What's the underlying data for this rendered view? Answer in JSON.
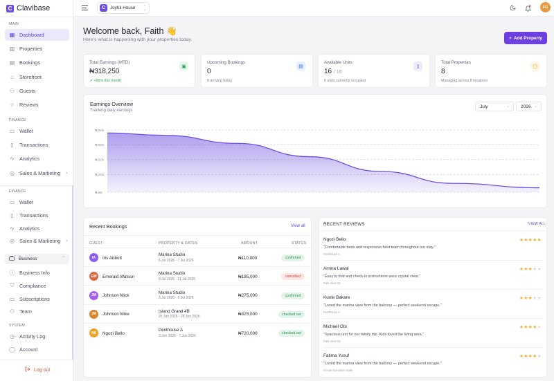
{
  "brand": {
    "name": "Clavibase",
    "logo_letter": "C"
  },
  "sidebar": {
    "main_label": "MAIN",
    "main_items": [
      {
        "label": "Dashboard",
        "icon": "grid-icon",
        "active": true
      },
      {
        "label": "Properties",
        "icon": "building-icon"
      },
      {
        "label": "Bookings",
        "icon": "calendar-icon"
      },
      {
        "label": "Storefront",
        "icon": "store-icon"
      },
      {
        "label": "Guests",
        "icon": "users-icon"
      },
      {
        "label": "Reviews",
        "icon": "star-icon"
      }
    ],
    "finance_label": "FINANCE",
    "finance_items": [
      {
        "label": "Wallet",
        "icon": "wallet-icon"
      },
      {
        "label": "Transactions",
        "icon": "receipt-icon"
      },
      {
        "label": "Analytics",
        "icon": "chart-line-icon"
      },
      {
        "label": "Sales & Marketing",
        "icon": "megaphone-icon"
      }
    ],
    "finance2_label": "FINANCE",
    "finance2_items": [
      {
        "label": "Wallet",
        "icon": "wallet-icon"
      },
      {
        "label": "Transactions",
        "icon": "receipt-icon"
      },
      {
        "label": "Analytics",
        "icon": "chart-line-icon"
      },
      {
        "label": "Sales & Marketing",
        "icon": "megaphone-icon"
      }
    ],
    "business_group": "Business",
    "business_items": [
      {
        "label": "Business Info",
        "icon": "info-icon"
      },
      {
        "label": "Compliance",
        "icon": "shield-icon"
      },
      {
        "label": "Subscriptions",
        "icon": "card-icon"
      },
      {
        "label": "Team",
        "icon": "team-icon"
      }
    ],
    "system_label": "SYSTEM",
    "system_items": [
      {
        "label": "Activity Log",
        "icon": "clock-icon"
      },
      {
        "label": "Account",
        "icon": "user-icon"
      }
    ],
    "logout": "Log out"
  },
  "topbar": {
    "property_badge": "C",
    "property_name": "Joyful House",
    "avatar_initials": "FO"
  },
  "header": {
    "welcome": "Welcome back, Faith 👋",
    "subtitle": "Here's what is happening with your properties today.",
    "add_button": "Add Property"
  },
  "stats": [
    {
      "title": "Total Earnings (MTD)",
      "value": "₦318,250",
      "suffix": "",
      "note": "+56% this month",
      "note_color": "#2f9e5a",
      "icon": "money-icon",
      "icon_bg": "#e6f6ec",
      "icon_color": "#2f9e5a"
    },
    {
      "title": "Upcoming Bookings",
      "value": "0",
      "suffix": "",
      "note": "0 arriving today",
      "icon": "calendar-icon",
      "icon_bg": "#e7eefc",
      "icon_color": "#3f6fd8"
    },
    {
      "title": "Available Units",
      "value": "16",
      "suffix": "/ 16",
      "note": "0 units currently occupied",
      "icon": "door-icon",
      "icon_bg": "#efeafc",
      "icon_color": "#6d4ee0"
    },
    {
      "title": "Total Properties",
      "value": "8",
      "suffix": "",
      "note": "Managing across 8 locations",
      "icon": "folder-icon",
      "icon_bg": "#fdf4e2",
      "icon_color": "#d99a1e"
    }
  ],
  "chart": {
    "title": "Earnings Overview",
    "subtitle": "Tracking daily earnings",
    "month_select": "July",
    "year_select": "2026"
  },
  "chart_data": {
    "type": "area",
    "y_ticks": [
      "₦40k",
      "₦100k",
      "₦150k",
      "₦200k",
      "₦250k"
    ],
    "y_tick_values": [
      40000,
      100000,
      150000,
      200000,
      250000
    ],
    "ylim": [
      40000,
      250000
    ],
    "x": [
      1,
      5,
      10,
      15,
      20,
      25,
      31
    ],
    "values": [
      240000,
      232000,
      205000,
      160000,
      110000,
      70000,
      55000
    ],
    "grid": true,
    "color": "#6d4ee0"
  },
  "bookings": {
    "title": "Recent Bookings",
    "view_all": "View all",
    "headers": [
      "GUEST",
      "PROPERTY & DATES",
      "AMOUNT",
      "STATUS"
    ],
    "rows": [
      {
        "initials": "IA",
        "avatar_color": "#8a5cf0",
        "guest": "Iris Abbott",
        "property": "Marina Studio",
        "dates": "6 Jul 2026 - 7 Jul 2026",
        "amount": "₦110,000",
        "status": "confirmed",
        "status_type": "confirmed"
      },
      {
        "initials": "EW",
        "avatar_color": "#e0683e",
        "guest": "Emerald Watson",
        "property": "Marina Studio",
        "dates": "9 Jul 2026 - 11 Jul 2026",
        "amount": "₦195,000",
        "status": "cancelled",
        "status_type": "cancelled"
      },
      {
        "initials": "JM",
        "avatar_color": "#a25de8",
        "guest": "Johnson Mick",
        "property": "Marina Studio",
        "dates": "3 Jul 2026 - 6 Jul 2026",
        "amount": "₦275,000",
        "status": "confirmed",
        "status_type": "confirmed"
      },
      {
        "initials": "JM",
        "avatar_color": "#d9862a",
        "guest": "Johnson Mike",
        "property": "Island Grand 4B",
        "dates": "25 Jun 2026 - 28 Jun 2026",
        "amount": "₦325,000",
        "status": "checked out",
        "status_type": "checked"
      },
      {
        "initials": "NB",
        "avatar_color": "#f0a020",
        "guest": "Ngozi Bello",
        "property": "Penthouse A",
        "dates": "3 Jun 2026 - 7 Jun 2026",
        "amount": "₦720,000",
        "status": "checked out",
        "status_type": "checked"
      }
    ]
  },
  "reviews": {
    "title": "RECENT REVIEWS",
    "view_all": "VIEW ALL",
    "items": [
      {
        "name": "Ngozi Bello",
        "text": "\"Comfortable beds and responsive host team throughout our stay.\"",
        "property": "Penthouse A",
        "rating": 5
      },
      {
        "name": "Amina Lawal",
        "text": "\"Easy to find and check-in instructions were crystal clear.\"",
        "property": "Park View 03",
        "rating": 3
      },
      {
        "name": "Kunle Bakare",
        "text": "\"Loved the marina view from the balcony — perfect weekend escape.\"",
        "property": "Penthouse A",
        "rating": 3
      },
      {
        "name": "Michael Obi",
        "text": "\"Spacious unit for our family trip. Kids loved the living area.\"",
        "property": "Park View 03",
        "rating": 4
      },
      {
        "name": "Fatima Yusuf",
        "text": "\"Loved the marina view from the balcony — perfect weekend escape.\"",
        "property": "Ocean Executive Suite",
        "rating": 4
      }
    ]
  }
}
